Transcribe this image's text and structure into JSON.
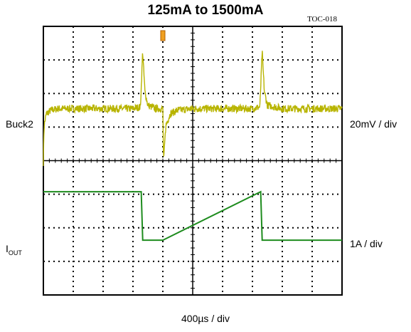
{
  "chart_data": {
    "type": "line",
    "title": "125mA to 1500mA",
    "tag": "TOC-018",
    "xlabel": "400µs / div",
    "grid": true,
    "x_divisions": 10,
    "y_divisions": 8,
    "time_per_div_us": 400,
    "trigger_time_us": 1600,
    "series": [
      {
        "name": "Buck2",
        "scale": "20mV / div",
        "color": "#b8b400",
        "baseline_div": 5.55,
        "x_us": [
          0,
          10,
          40,
          100,
          200,
          400,
          800,
          1200,
          1300,
          1330,
          1360,
          1400,
          1500,
          1600,
          1610,
          1640,
          1700,
          1800,
          2000,
          2400,
          2800,
          2900,
          2930,
          2960,
          3000,
          3200,
          3600,
          4000
        ],
        "offset_div": [
          -1.6,
          -0.5,
          -0.15,
          -0.05,
          0,
          0,
          0,
          0,
          0.05,
          1.7,
          0.5,
          0.1,
          0,
          0,
          -1.6,
          -0.5,
          -0.15,
          -0.05,
          0,
          0,
          0,
          0.05,
          1.7,
          0.5,
          0.1,
          0,
          0,
          0
        ]
      },
      {
        "name": "IOUT",
        "label_main": "I",
        "label_sub": "OUT",
        "scale": "1A / div",
        "color": "#1e8c1e",
        "x_us": [
          0,
          1310,
          1330,
          1600,
          2910,
          2930,
          4000
        ],
        "current_A": [
          1.5,
          1.5,
          0.125,
          0.125,
          1.5,
          0.125,
          0.125
        ],
        "levels_A": [
          0.125,
          1.5
        ],
        "zero_div": 1.5
      }
    ],
    "level_notes": {
      "low": "125mA",
      "high": "1500mA"
    }
  }
}
